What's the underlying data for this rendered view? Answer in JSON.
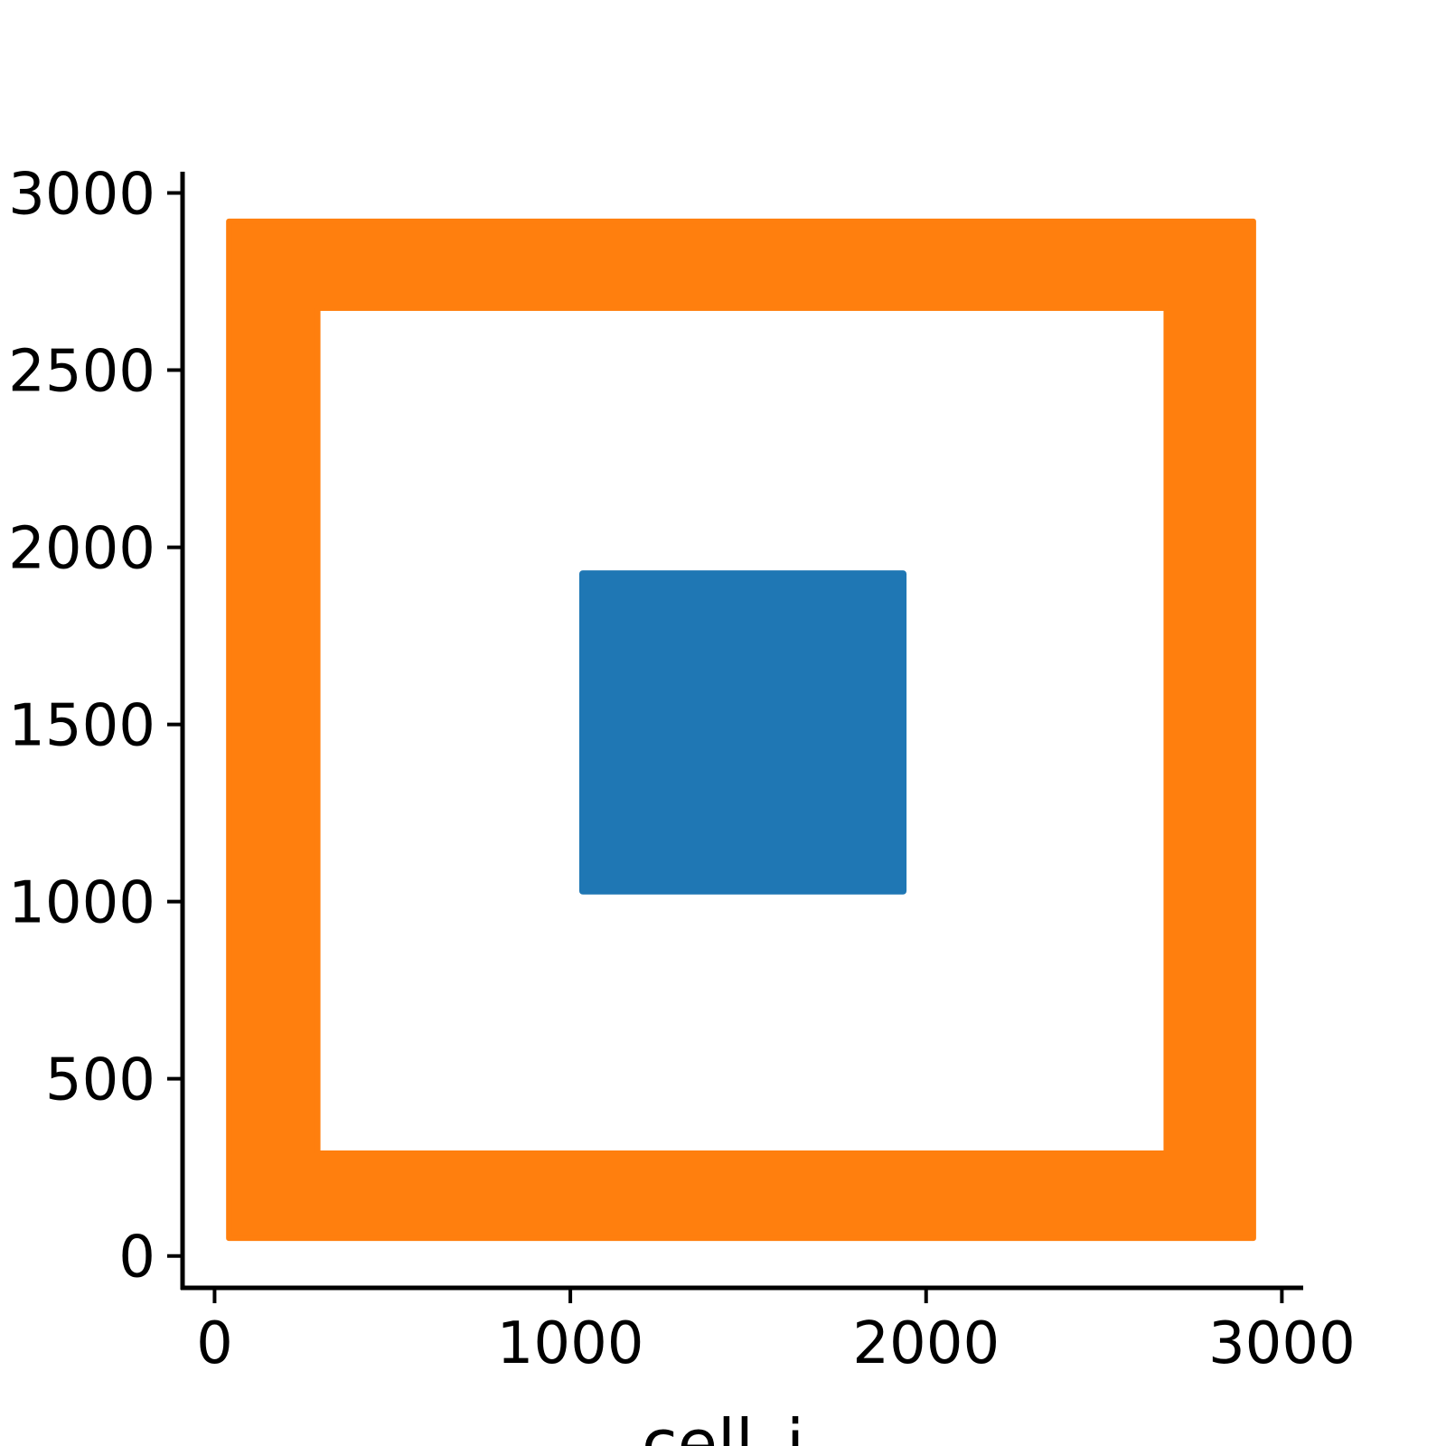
{
  "chart_data": {
    "type": "scatter",
    "title": "",
    "xlabel": "cell_i",
    "ylabel": "",
    "xlim": [
      -90,
      3060
    ],
    "ylim": [
      -90,
      3060
    ],
    "xticks": [
      0,
      1000,
      2000,
      3000
    ],
    "yticks": [
      0,
      500,
      1000,
      1500,
      2000,
      2500,
      3000
    ],
    "grid": false,
    "legend": "none",
    "series": [
      {
        "color": "#1f77b4",
        "shape": "filled square",
        "region": {
          "x": [
            1025,
            1945
          ],
          "y": [
            1020,
            1935
          ]
        }
      },
      {
        "color": "#ff7f0e",
        "shape": "square ring",
        "outer": {
          "x": [
            40,
            2920
          ],
          "y": [
            50,
            2920
          ]
        },
        "inner": {
          "x": [
            290,
            2675
          ],
          "y": [
            290,
            2675
          ]
        }
      }
    ]
  }
}
